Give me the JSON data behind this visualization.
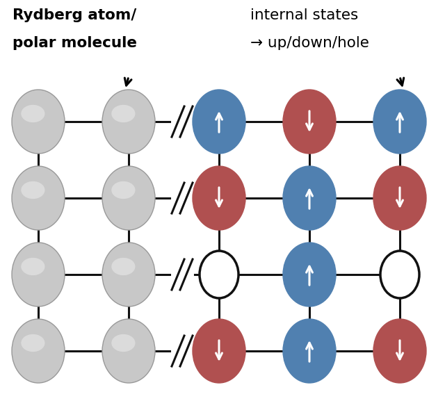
{
  "background_color": "#ffffff",
  "grid_rows": 4,
  "gray_color": "#c8c8c8",
  "gray_edge_color": "#b0b0b0",
  "blue_color": "#5080b0",
  "red_color": "#b05050",
  "hole_edge_color": "#111111",
  "line_color": "#111111",
  "nodes": [
    {
      "row": 0,
      "col": 0,
      "type": "gray"
    },
    {
      "row": 0,
      "col": 1,
      "type": "gray"
    },
    {
      "row": 0,
      "col": 2,
      "type": "up"
    },
    {
      "row": 0,
      "col": 3,
      "type": "down"
    },
    {
      "row": 0,
      "col": 4,
      "type": "up"
    },
    {
      "row": 1,
      "col": 0,
      "type": "gray"
    },
    {
      "row": 1,
      "col": 1,
      "type": "gray"
    },
    {
      "row": 1,
      "col": 2,
      "type": "down"
    },
    {
      "row": 1,
      "col": 3,
      "type": "up"
    },
    {
      "row": 1,
      "col": 4,
      "type": "down"
    },
    {
      "row": 2,
      "col": 0,
      "type": "gray"
    },
    {
      "row": 2,
      "col": 1,
      "type": "gray"
    },
    {
      "row": 2,
      "col": 2,
      "type": "hole"
    },
    {
      "row": 2,
      "col": 3,
      "type": "up"
    },
    {
      "row": 2,
      "col": 4,
      "type": "hole"
    },
    {
      "row": 3,
      "col": 0,
      "type": "gray"
    },
    {
      "row": 3,
      "col": 1,
      "type": "gray"
    },
    {
      "row": 3,
      "col": 2,
      "type": "down"
    },
    {
      "row": 3,
      "col": 3,
      "type": "up"
    },
    {
      "row": 3,
      "col": 4,
      "type": "down"
    }
  ],
  "figsize": [
    6.4,
    6.0
  ],
  "dpi": 100
}
